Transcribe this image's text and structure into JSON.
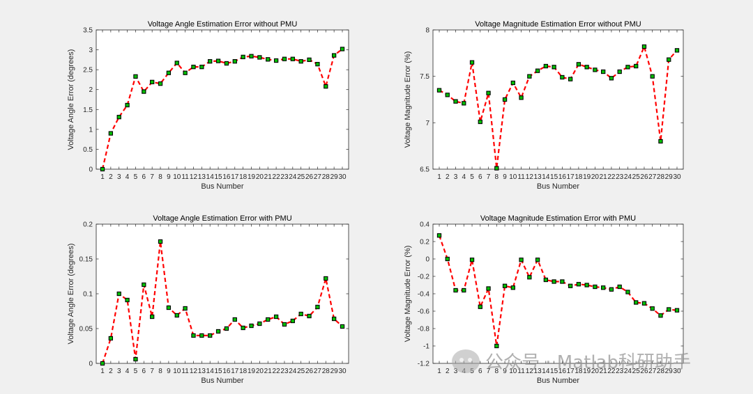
{
  "colors": {
    "line": "#ff0000",
    "marker_face": "#00c000",
    "marker_edge": "#000000",
    "axes_bg": "#ffffff",
    "figure_bg": "#f0f0f0"
  },
  "watermark": {
    "text": "公众号 · Matlab科研助手",
    "icon": "wechat-logo-icon"
  },
  "chart_data": [
    {
      "type": "line",
      "title": "Voltage Angle Estimation Error without PMU",
      "xlabel": "Bus Number",
      "ylabel": "Voltage Angle Error (degrees)",
      "xlim": [
        1,
        30
      ],
      "ylim": [
        0,
        3.5
      ],
      "yticks": [
        0,
        0.5,
        1,
        1.5,
        2,
        2.5,
        3,
        3.5
      ],
      "ytick_labels": [
        "0",
        "0.5",
        "1",
        "1.5",
        "2",
        "2.5",
        "3",
        "3.5"
      ],
      "x": [
        1,
        2,
        3,
        4,
        5,
        6,
        7,
        8,
        9,
        10,
        11,
        12,
        13,
        14,
        15,
        16,
        17,
        18,
        19,
        20,
        21,
        22,
        23,
        24,
        25,
        26,
        27,
        28,
        29,
        30
      ],
      "values": [
        0,
        0.9,
        1.31,
        1.61,
        2.33,
        1.95,
        2.19,
        2.15,
        2.42,
        2.67,
        2.42,
        2.57,
        2.57,
        2.71,
        2.72,
        2.66,
        2.71,
        2.82,
        2.84,
        2.81,
        2.76,
        2.73,
        2.77,
        2.77,
        2.71,
        2.75,
        2.64,
        2.08,
        2.86,
        3.02
      ]
    },
    {
      "type": "line",
      "title": "Voltage Magnitude Estimation Error without PMU",
      "xlabel": "Bus Number",
      "ylabel": "Voltage Magnitude Error (%)",
      "xlim": [
        1,
        30
      ],
      "ylim": [
        6.5,
        8
      ],
      "yticks": [
        6.5,
        7,
        7.5,
        8
      ],
      "ytick_labels": [
        "6.5",
        "7",
        "7.5",
        "8"
      ],
      "x": [
        1,
        2,
        3,
        4,
        5,
        6,
        7,
        8,
        9,
        10,
        11,
        12,
        13,
        14,
        15,
        16,
        17,
        18,
        19,
        20,
        21,
        22,
        23,
        24,
        25,
        26,
        27,
        28,
        29,
        30
      ],
      "values": [
        7.35,
        7.3,
        7.23,
        7.21,
        7.65,
        7.01,
        7.32,
        6.51,
        7.25,
        7.43,
        7.27,
        7.5,
        7.56,
        7.61,
        7.6,
        7.49,
        7.47,
        7.63,
        7.6,
        7.57,
        7.55,
        7.48,
        7.55,
        7.6,
        7.61,
        7.82,
        7.5,
        6.8,
        7.68,
        7.78
      ]
    },
    {
      "type": "line",
      "title": "Voltage Angle Estimation Error with PMU",
      "xlabel": "Bus Number",
      "ylabel": "Voltage Angle Error (degrees)",
      "xlim": [
        1,
        30
      ],
      "ylim": [
        0,
        0.2
      ],
      "yticks": [
        0,
        0.05,
        0.1,
        0.15,
        0.2
      ],
      "ytick_labels": [
        "0",
        "0.05",
        "0.1",
        "0.15",
        "0.2"
      ],
      "x": [
        1,
        2,
        3,
        4,
        5,
        6,
        7,
        8,
        9,
        10,
        11,
        12,
        13,
        14,
        15,
        16,
        17,
        18,
        19,
        20,
        21,
        22,
        23,
        24,
        25,
        26,
        27,
        28,
        29,
        30
      ],
      "values": [
        0,
        0.036,
        0.1,
        0.091,
        0.006,
        0.113,
        0.067,
        0.175,
        0.08,
        0.069,
        0.079,
        0.04,
        0.04,
        0.04,
        0.046,
        0.05,
        0.063,
        0.051,
        0.054,
        0.057,
        0.063,
        0.067,
        0.056,
        0.061,
        0.071,
        0.068,
        0.081,
        0.122,
        0.064,
        0.053
      ]
    },
    {
      "type": "line",
      "title": "Voltage Magnitude Estimation Error with PMU",
      "xlabel": "Bus Number",
      "ylabel": "Voltage Magnitude Error (%)",
      "xlim": [
        1,
        30
      ],
      "ylim": [
        -1.2,
        0.4
      ],
      "yticks": [
        -1.2,
        -1,
        -0.8,
        -0.6,
        -0.4,
        -0.2,
        0,
        0.2,
        0.4
      ],
      "ytick_labels": [
        "-1.2",
        "-1",
        "-0.8",
        "-0.6",
        "-0.4",
        "-0.2",
        "0",
        "0.2",
        "0.4"
      ],
      "x": [
        1,
        2,
        3,
        4,
        5,
        6,
        7,
        8,
        9,
        10,
        11,
        12,
        13,
        14,
        15,
        16,
        17,
        18,
        19,
        20,
        21,
        22,
        23,
        24,
        25,
        26,
        27,
        28,
        29,
        30
      ],
      "values": [
        0.27,
        0.0,
        -0.36,
        -0.36,
        -0.01,
        -0.55,
        -0.34,
        -1.0,
        -0.31,
        -0.33,
        -0.01,
        -0.21,
        -0.01,
        -0.24,
        -0.26,
        -0.26,
        -0.31,
        -0.29,
        -0.3,
        -0.32,
        -0.33,
        -0.35,
        -0.32,
        -0.38,
        -0.5,
        -0.51,
        -0.57,
        -0.65,
        -0.58,
        -0.59
      ]
    }
  ]
}
